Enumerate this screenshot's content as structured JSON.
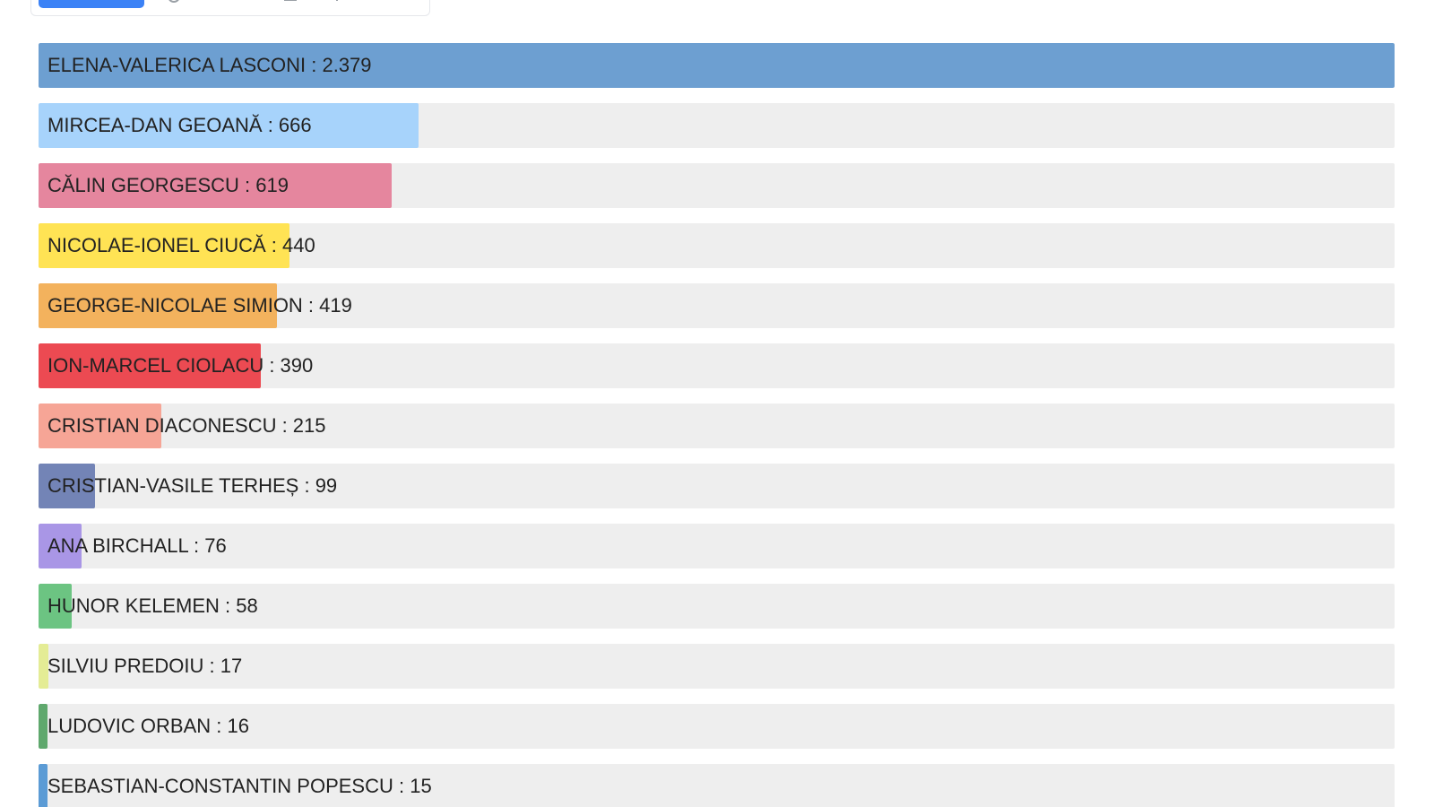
{
  "chart_data": {
    "type": "bar",
    "orientation": "horizontal",
    "xlim": [
      0,
      2379
    ],
    "legend": "none",
    "grid": false,
    "series": [
      {
        "name": "ELENA-VALERICA LASCONI",
        "value": 2379,
        "value_text": "2.379",
        "color": "#6d9fd1"
      },
      {
        "name": "MIRCEA-DAN GEOANĂ",
        "value": 666,
        "value_text": "666",
        "color": "#a7d3fb"
      },
      {
        "name": "CĂLIN GEORGESCU",
        "value": 619,
        "value_text": "619",
        "color": "#e5869e"
      },
      {
        "name": "NICOLAE-IONEL CIUCĂ",
        "value": 440,
        "value_text": "440",
        "color": "#ffe354"
      },
      {
        "name": "GEORGE-NICOLAE SIMION",
        "value": 419,
        "value_text": "419",
        "color": "#f3b25d"
      },
      {
        "name": "ION-MARCEL CIOLACU",
        "value": 390,
        "value_text": "390",
        "color": "#ec4a52"
      },
      {
        "name": "CRISTIAN DIACONESCU",
        "value": 215,
        "value_text": "215",
        "color": "#f6a596"
      },
      {
        "name": "CRISTIAN-VASILE TERHEȘ",
        "value": 99,
        "value_text": "99",
        "color": "#7384b6"
      },
      {
        "name": "ANA BIRCHALL",
        "value": 76,
        "value_text": "76",
        "color": "#a996e6"
      },
      {
        "name": "HUNOR KELEMEN",
        "value": 58,
        "value_text": "58",
        "color": "#6cc482"
      },
      {
        "name": "SILVIU PREDOIU",
        "value": 17,
        "value_text": "17",
        "color": "#e4ec95"
      },
      {
        "name": "LUDOVIC ORBAN",
        "value": 16,
        "value_text": "16",
        "color": "#5fa86d"
      },
      {
        "name": "SEBASTIAN-CONSTANTIN POPESCU",
        "value": 15,
        "value_text": "15",
        "color": "#5b9bd5"
      }
    ]
  }
}
